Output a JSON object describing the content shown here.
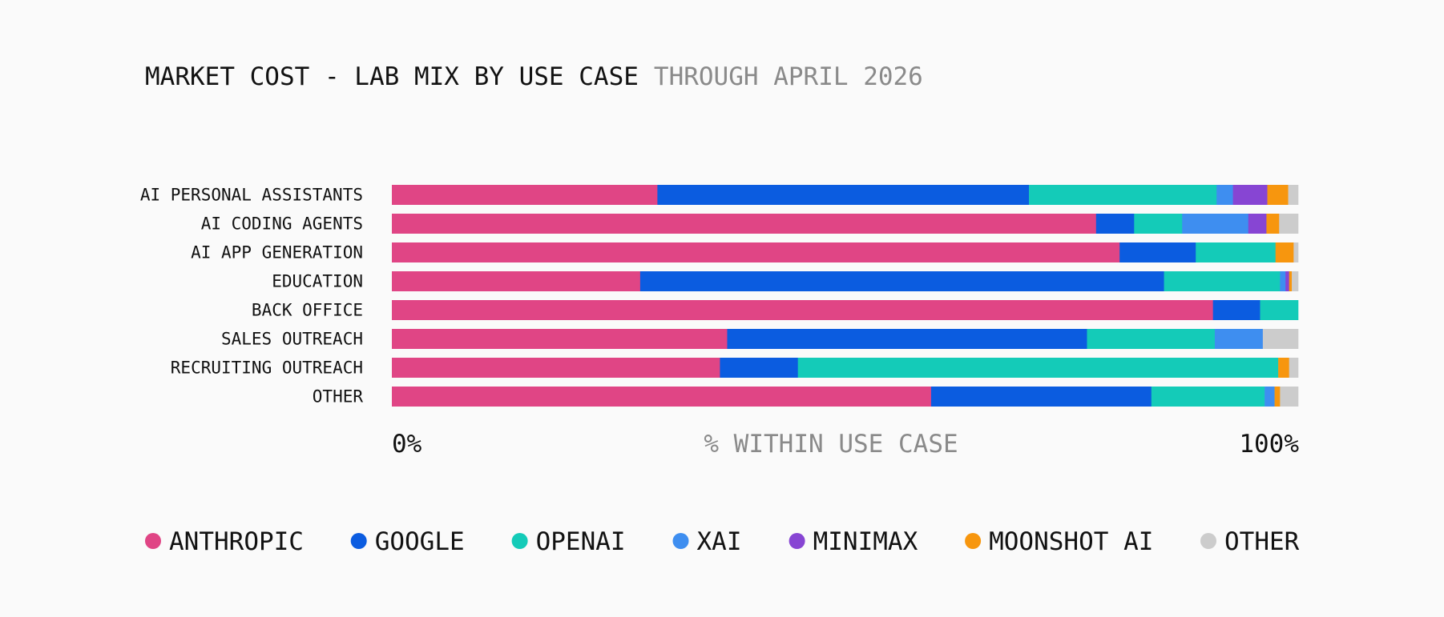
{
  "chart_data": {
    "type": "bar",
    "orientation": "horizontal",
    "stacked": true,
    "normalized": true,
    "title": "MARKET COST - LAB MIX BY USE CASE",
    "subtitle": "THROUGH APRIL 2026",
    "xlabel": "% WITHIN USE CASE",
    "ylabel": "",
    "xlim": [
      0,
      100
    ],
    "x_tick_labels": [
      "0%",
      "100%"
    ],
    "grid": false,
    "legend_position": "bottom",
    "categories": [
      "AI PERSONAL ASSISTANTS",
      "AI CODING AGENTS",
      "AI APP GENERATION",
      "EDUCATION",
      "BACK OFFICE",
      "SALES OUTREACH",
      "RECRUITING OUTREACH",
      "OTHER"
    ],
    "series": [
      {
        "name": "ANTHROPIC",
        "color": "#e04585",
        "values": [
          29.3,
          77.7,
          80.3,
          27.4,
          90.6,
          37.0,
          36.2,
          59.5
        ]
      },
      {
        "name": "GOOGLE",
        "color": "#0b5ce0",
        "values": [
          41.0,
          4.2,
          8.4,
          57.8,
          5.2,
          39.7,
          8.6,
          24.3
        ]
      },
      {
        "name": "OPENAI",
        "color": "#14cbb8",
        "values": [
          20.7,
          5.3,
          8.8,
          12.8,
          4.2,
          14.1,
          53.0,
          12.5
        ]
      },
      {
        "name": "XAI",
        "color": "#3e8ef0",
        "values": [
          1.8,
          7.3,
          0.0,
          0.6,
          0.0,
          5.3,
          0.0,
          1.1
        ]
      },
      {
        "name": "MINIMAX",
        "color": "#8745d3",
        "values": [
          3.8,
          2.0,
          0.0,
          0.4,
          0.0,
          0.0,
          0.0,
          0.0
        ]
      },
      {
        "name": "MOONSHOT AI",
        "color": "#f7960e",
        "values": [
          2.3,
          1.4,
          2.0,
          0.3,
          0.0,
          0.0,
          1.2,
          0.6
        ]
      },
      {
        "name": "OTHER",
        "color": "#cccccc",
        "values": [
          1.1,
          2.1,
          0.5,
          0.7,
          0.0,
          3.9,
          1.0,
          2.0
        ]
      }
    ]
  }
}
